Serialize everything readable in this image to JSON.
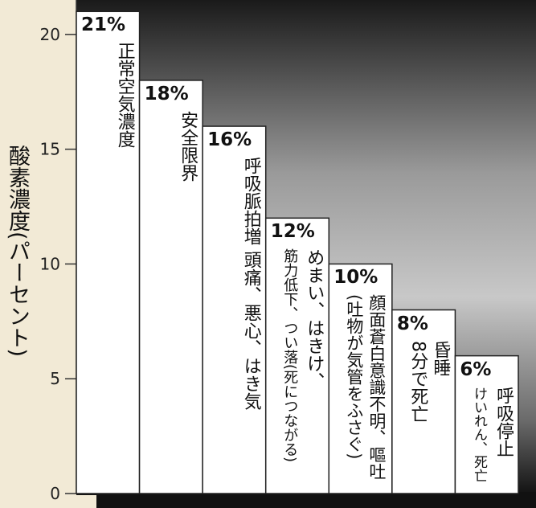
{
  "chart_data": {
    "type": "step-bar",
    "y_label": "酸素濃度(パーセント)",
    "values": [
      21,
      18,
      16,
      12,
      10,
      8,
      6
    ],
    "value_labels": [
      "21%",
      "18%",
      "16%",
      "12%",
      "10%",
      "8%",
      "6%"
    ],
    "descriptions": [
      [
        "正常空気濃度"
      ],
      [
        "安全限界"
      ],
      [
        "呼吸脈拍増 頭痛、悪心、はき気"
      ],
      [
        "めまい、はきけ、",
        "筋力低下、つい落(死につながる)"
      ],
      [
        "顔面蒼白意識不明、嘔吐",
        "(吐物が気管をふさぐ)"
      ],
      [
        "昏睡",
        "8分で死亡"
      ],
      [
        "呼吸停止",
        "けいれん、死亡"
      ]
    ],
    "color": "#ffffff",
    "ylim": [
      0,
      21.5
    ],
    "yticks": [
      0,
      5,
      10,
      15,
      20
    ]
  }
}
